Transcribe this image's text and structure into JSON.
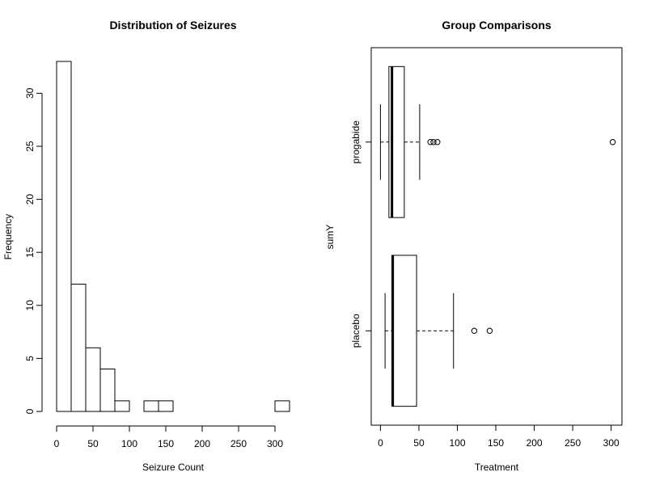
{
  "chart_data": [
    {
      "type": "bar",
      "subtype": "histogram",
      "title": "Distribution of Seizures",
      "xlabel": "Seizure Count",
      "ylabel": "Frequency",
      "bins": [
        {
          "from": 0,
          "to": 20,
          "count": 33
        },
        {
          "from": 20,
          "to": 40,
          "count": 12
        },
        {
          "from": 40,
          "to": 60,
          "count": 6
        },
        {
          "from": 60,
          "to": 80,
          "count": 4
        },
        {
          "from": 80,
          "to": 100,
          "count": 1
        },
        {
          "from": 100,
          "to": 120,
          "count": 0
        },
        {
          "from": 120,
          "to": 140,
          "count": 1
        },
        {
          "from": 140,
          "to": 160,
          "count": 1
        },
        {
          "from": 160,
          "to": 180,
          "count": 0
        },
        {
          "from": 180,
          "to": 200,
          "count": 0
        },
        {
          "from": 200,
          "to": 220,
          "count": 0
        },
        {
          "from": 220,
          "to": 240,
          "count": 0
        },
        {
          "from": 240,
          "to": 260,
          "count": 0
        },
        {
          "from": 260,
          "to": 280,
          "count": 0
        },
        {
          "from": 280,
          "to": 300,
          "count": 0
        },
        {
          "from": 300,
          "to": 320,
          "count": 1
        }
      ],
      "xticks": [
        0,
        50,
        100,
        150,
        200,
        250,
        300
      ],
      "xtick_labels": [
        "0",
        "50",
        "100",
        "150",
        "200",
        "250",
        "300"
      ],
      "yticks": [
        0,
        5,
        10,
        15,
        20,
        25,
        30
      ],
      "ytick_labels": [
        "0",
        "5",
        "10",
        "15",
        "20",
        "25",
        "30"
      ],
      "xlim": [
        0,
        320
      ],
      "ylim": [
        0,
        33
      ],
      "grid": false
    },
    {
      "type": "boxplot",
      "orientation": "horizontal",
      "title": "Group Comparisons",
      "xlabel": "Treatment",
      "ylabel": "sumY",
      "categories": [
        "placebo",
        "progabide"
      ],
      "boxes": [
        {
          "name": "placebo",
          "whisker_low": 6,
          "q1": 15,
          "median": 16,
          "q3": 47,
          "whisker_high": 95,
          "outliers": [
            122,
            142
          ]
        },
        {
          "name": "progabide",
          "whisker_low": 0,
          "q1": 11,
          "median": 15,
          "q3": 31,
          "whisker_high": 51,
          "outliers": [
            65,
            69,
            74,
            302
          ]
        }
      ],
      "xticks": [
        0,
        50,
        100,
        150,
        200,
        250,
        300
      ],
      "xtick_labels": [
        "0",
        "50",
        "100",
        "150",
        "200",
        "250",
        "300"
      ],
      "xlim": [
        -12,
        314
      ],
      "framed": true,
      "grid": false
    }
  ]
}
